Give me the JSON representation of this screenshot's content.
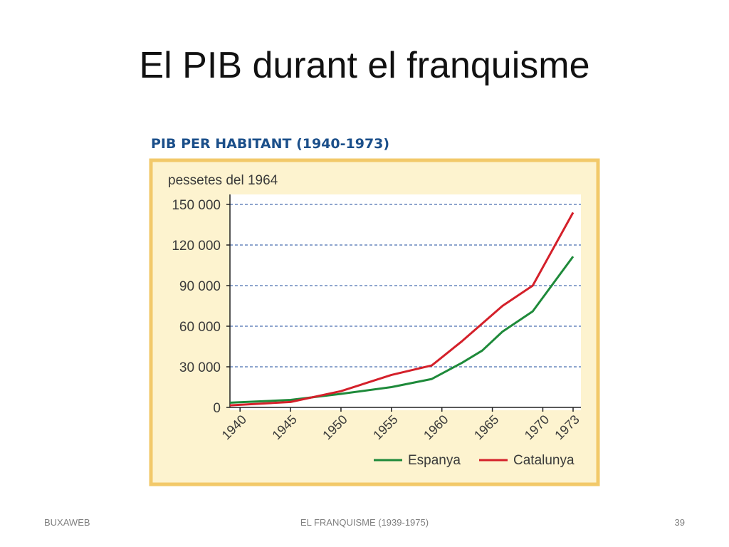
{
  "slide": {
    "title": "El PIB durant el franquisme",
    "footer_left": "BUXAWEB",
    "footer_center": "EL FRANQUISME (1939-1975)",
    "footer_right": "39"
  },
  "chart_data": {
    "type": "line",
    "title": "PIB PER HABITANT (1940-1973)",
    "ylabel": "pessetes del 1964",
    "xlabel": "",
    "xlim": [
      1939,
      1973
    ],
    "ylim": [
      0,
      150000
    ],
    "x_ticks": [
      1940,
      1945,
      1950,
      1955,
      1960,
      1965,
      1970,
      1973
    ],
    "y_ticks": [
      0,
      30000,
      60000,
      90000,
      120000,
      150000
    ],
    "y_tick_labels": [
      "0",
      "30 000",
      "60 000",
      "90 000",
      "120 000",
      "150 000"
    ],
    "grid": "horizontal dashed",
    "legend_position": "bottom-right",
    "series": [
      {
        "name": "Espanya",
        "color": "#1e8a3a",
        "points": [
          [
            1939,
            3500
          ],
          [
            1945,
            5500
          ],
          [
            1950,
            10000
          ],
          [
            1955,
            15000
          ],
          [
            1959,
            21000
          ],
          [
            1962,
            33000
          ],
          [
            1964,
            42000
          ],
          [
            1966,
            56000
          ],
          [
            1969,
            71000
          ],
          [
            1973,
            111500
          ]
        ]
      },
      {
        "name": "Catalunya",
        "color": "#d4202a",
        "points": [
          [
            1939,
            1500
          ],
          [
            1945,
            4000
          ],
          [
            1950,
            12000
          ],
          [
            1955,
            24000
          ],
          [
            1959,
            31000
          ],
          [
            1962,
            49000
          ],
          [
            1964,
            62000
          ],
          [
            1966,
            75000
          ],
          [
            1969,
            90000
          ],
          [
            1973,
            144000
          ]
        ]
      }
    ],
    "colors": {
      "panel_background": "#fdf3cf",
      "panel_border": "#f2c96a",
      "title_color": "#1b4f8a",
      "grid_color": "#4a6fb0"
    }
  }
}
